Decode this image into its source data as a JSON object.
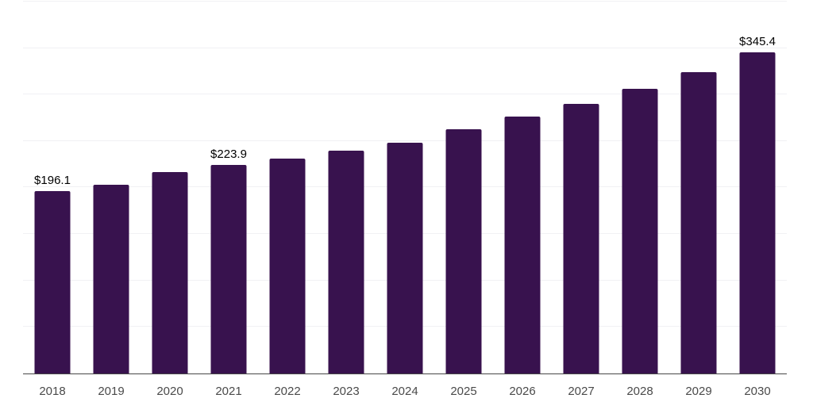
{
  "chart_data": {
    "type": "bar",
    "title": "",
    "xlabel": "",
    "ylabel": "",
    "categories": [
      "2018",
      "2019",
      "2020",
      "2021",
      "2022",
      "2023",
      "2024",
      "2025",
      "2026",
      "2027",
      "2028",
      "2029",
      "2030"
    ],
    "values": [
      196.1,
      202.9,
      217.0,
      223.9,
      231.5,
      239.4,
      248.1,
      262.5,
      276.1,
      290.4,
      305.9,
      324.3,
      345.4
    ],
    "data_labels": {
      "2018": "$196.1",
      "2021": "$223.9",
      "2030": "$345.4"
    },
    "value_prefix": "$",
    "ylim": [
      0,
      400
    ],
    "gridline_interval": 50,
    "grid": "horizontal-faint",
    "legend_position": "none",
    "colors": {
      "bar_fill": "#38124E",
      "axis_line": "#474747",
      "gridline": "#f1f1f4",
      "tick_label": "#4a4a4a",
      "value_label": "#000000",
      "background": "#ffffff"
    }
  }
}
